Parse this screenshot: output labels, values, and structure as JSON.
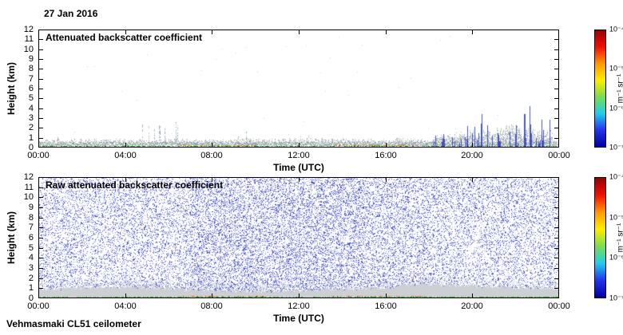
{
  "page": {
    "date_label": "27 Jan 2016",
    "footer_label": "Vehmasmaki CL51 ceilometer"
  },
  "colorbar": {
    "ticks": [
      "10⁻⁴",
      "10⁻⁵",
      "10⁻⁶",
      "10⁻⁷"
    ],
    "unit": "m⁻¹ sr⁻¹",
    "colors": [
      "#990000",
      "#ee1100",
      "#ff9900",
      "#ffee00",
      "#77dd55",
      "#22ccee",
      "#2233ee",
      "#000099"
    ]
  },
  "panels": [
    {
      "title": "Attenuated backscatter coefficient",
      "xlabel": "Time (UTC)",
      "ylabel": "Height (km)",
      "x_ticks": [
        "00:00",
        "04:00",
        "08:00",
        "12:00",
        "16:00",
        "20:00",
        "00:00"
      ],
      "y_ticks": [
        "0",
        "1",
        "2",
        "3",
        "4",
        "5",
        "6",
        "7",
        "8",
        "9",
        "10",
        "11",
        "12"
      ]
    },
    {
      "title": "Raw attenuated backscatter coefficient",
      "xlabel": "Time (UTC)",
      "ylabel": "Height (km)",
      "x_ticks": [
        "00:00",
        "04:00",
        "08:00",
        "12:00",
        "16:00",
        "20:00",
        "00:00"
      ],
      "y_ticks": [
        "0",
        "1",
        "2",
        "3",
        "4",
        "5",
        "6",
        "7",
        "8",
        "9",
        "10",
        "11",
        "12"
      ]
    }
  ],
  "chart_data": [
    {
      "type": "heatmap",
      "title": "Attenuated backscatter coefficient",
      "xlabel": "Time (UTC)",
      "ylabel": "Height (km)",
      "x_range_hours": [
        0,
        24
      ],
      "x_ticks": [
        "00:00",
        "04:00",
        "08:00",
        "12:00",
        "16:00",
        "20:00",
        "00:00"
      ],
      "ylim": [
        0,
        12
      ],
      "colorbar": {
        "scale": "log",
        "min": 1e-07,
        "max": 0.0001,
        "unit": "m⁻¹ sr⁻¹"
      },
      "grid": false,
      "legend": "colorbar-right",
      "features": [
        {
          "label": "surface aerosol boundary layer, gray-blue speckle",
          "t": [
            0,
            24
          ],
          "h": [
            0,
            0.9
          ],
          "style": "gray"
        },
        {
          "label": "lofted plumes",
          "t": [
            4.7,
            6.6
          ],
          "h": [
            0,
            2.9
          ],
          "style": "gray-spikes"
        },
        {
          "label": "morning plume",
          "t": [
            9.2,
            10.4
          ],
          "h": [
            0,
            1.7
          ],
          "style": "gray"
        },
        {
          "label": "midday shallow layer",
          "t": [
            10.8,
            14.2
          ],
          "h": [
            0,
            1.2
          ],
          "style": "gray"
        },
        {
          "label": "late-afternoon puff",
          "t": [
            16.1,
            16.9
          ],
          "h": [
            0,
            1.1
          ],
          "style": "gray"
        },
        {
          "label": "evening precipitation with tall blue virga spikes up to 6 km",
          "t": [
            18.2,
            23.7
          ],
          "h": [
            0,
            6.2
          ],
          "style": "blue-spikes"
        },
        {
          "label": "green/red surface return line along 0 km",
          "t": [
            0,
            24
          ],
          "h": [
            0,
            0.1
          ],
          "style": "surface-line"
        }
      ]
    },
    {
      "type": "heatmap",
      "title": "Raw attenuated backscatter coefficient",
      "xlabel": "Time (UTC)",
      "ylabel": "Height (km)",
      "x_range_hours": [
        0,
        24
      ],
      "x_ticks": [
        "00:00",
        "04:00",
        "08:00",
        "12:00",
        "16:00",
        "20:00",
        "00:00"
      ],
      "ylim": [
        0,
        12
      ],
      "colorbar": {
        "scale": "log",
        "min": 1e-07,
        "max": 0.0001,
        "unit": "m⁻¹ sr⁻¹"
      },
      "grid": false,
      "legend": "colorbar-right",
      "features": [
        {
          "label": "background instrument noise, blue speckle over full 0-12 km depth",
          "t": [
            0,
            24
          ],
          "h": [
            0,
            12
          ],
          "style": "noise"
        },
        {
          "label": "denser daytime noise",
          "t": [
            7,
            15
          ],
          "h": [
            0,
            12
          ],
          "style": "noise-dense"
        },
        {
          "label": "solid light-gray surface aerosol layer",
          "t": [
            0,
            24
          ],
          "h": [
            0,
            1.1
          ],
          "style": "band"
        },
        {
          "label": "green/red surface return line along 0 km",
          "t": [
            0,
            24
          ],
          "h": [
            0,
            0.1
          ],
          "style": "surface-line"
        }
      ]
    }
  ]
}
